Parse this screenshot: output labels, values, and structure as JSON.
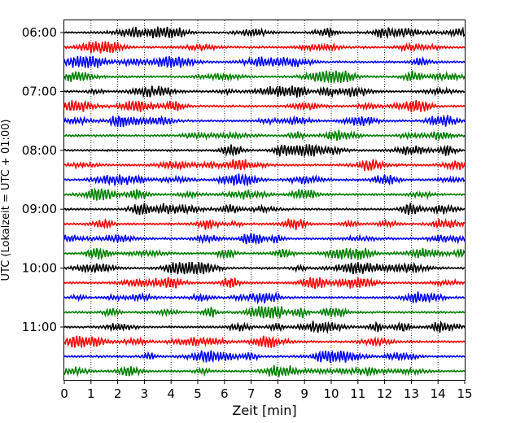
{
  "chart_data": {
    "type": "line",
    "title": "",
    "xlabel": "Zeit  [min]",
    "ylabel": "UTC (Lokalzeit = UTC + 01:00)",
    "xlim": [
      0,
      15
    ],
    "xticks": [
      "0",
      "1",
      "2",
      "3",
      "4",
      "5",
      "6",
      "7",
      "8",
      "9",
      "10",
      "11",
      "12",
      "13",
      "14",
      "15"
    ],
    "yticks": [
      "06:00",
      "07:00",
      "08:00",
      "09:00",
      "10:00",
      "11:00"
    ],
    "trace_start_times": [
      "06:00",
      "06:15",
      "06:30",
      "06:45",
      "07:00",
      "07:15",
      "07:30",
      "07:45",
      "08:00",
      "08:15",
      "08:30",
      "08:45",
      "09:00",
      "09:15",
      "09:30",
      "09:45",
      "10:00",
      "10:15",
      "10:30",
      "10:45",
      "11:00",
      "11:15",
      "11:30",
      "11:45"
    ],
    "trace_color_cycle": [
      "#000000",
      "#ff0000",
      "#0000ff",
      "#008000"
    ],
    "vertical_grid": "dotted, every 1 min",
    "minutes_per_trace": 15
  }
}
